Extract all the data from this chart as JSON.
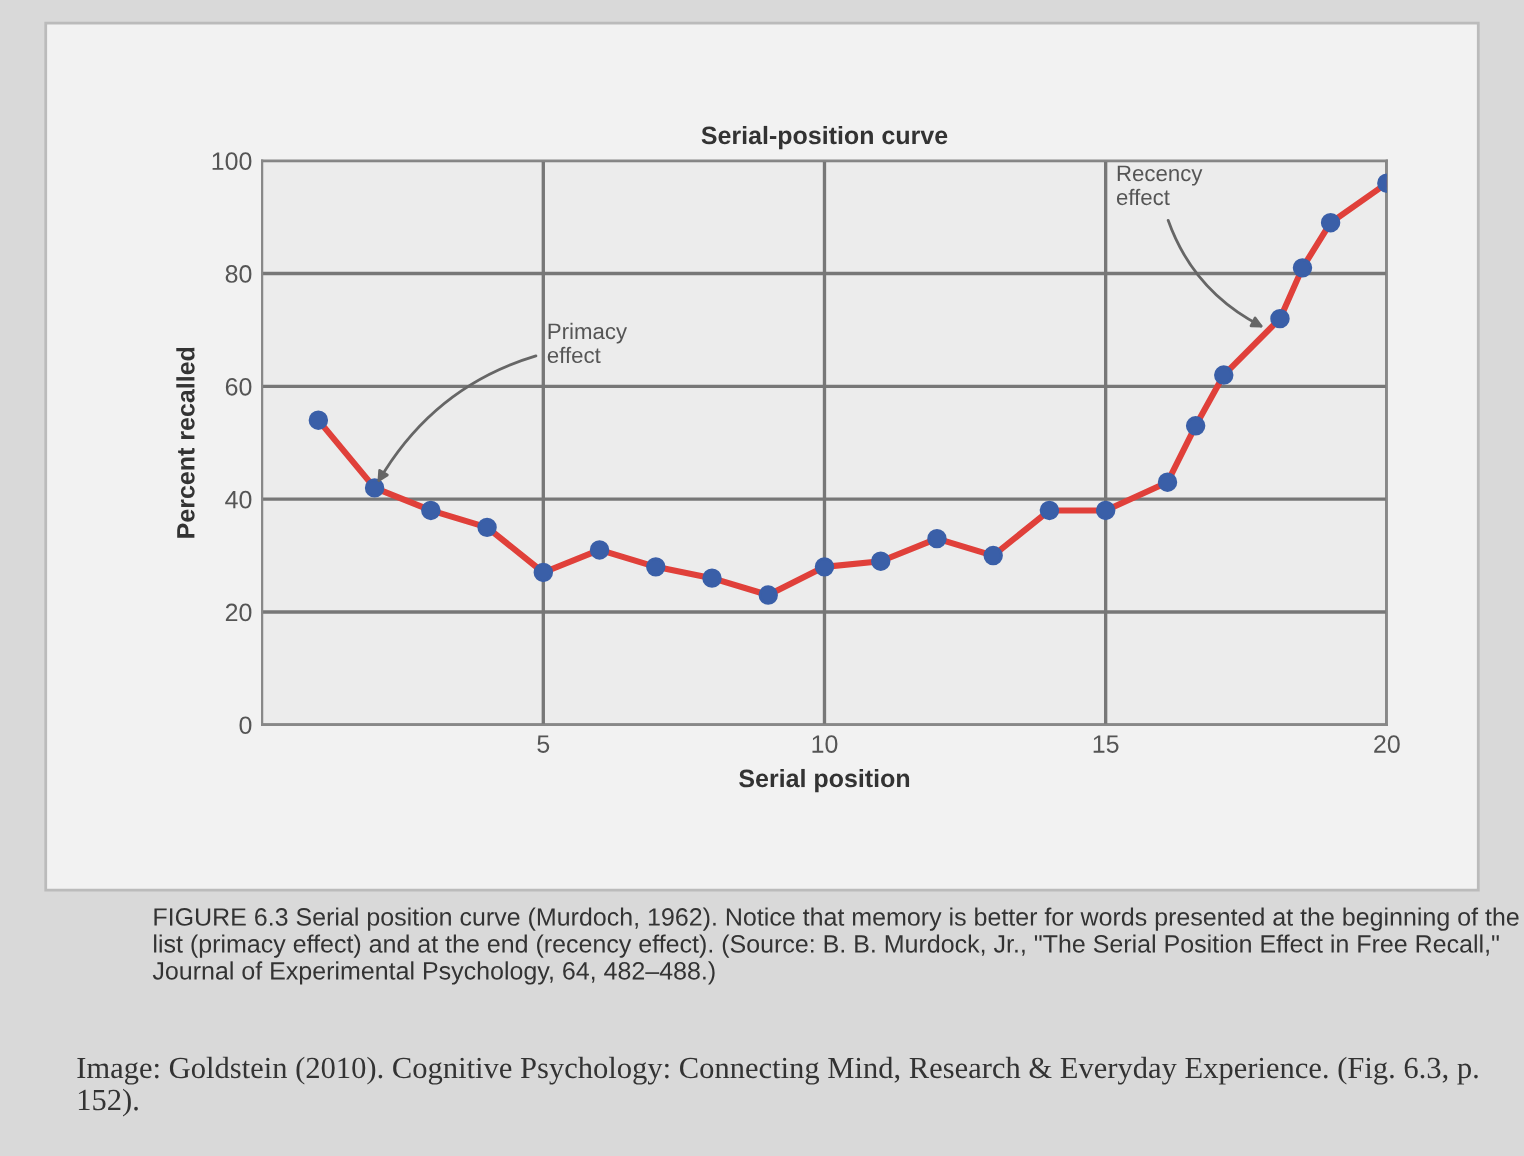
{
  "chart_data": {
    "type": "line",
    "title": "Serial-position curve",
    "xlabel": "Serial position",
    "ylabel": "Percent recalled",
    "x": [
      1,
      2,
      3,
      4,
      5,
      6,
      7,
      8,
      9,
      10,
      11,
      12,
      13,
      14,
      15,
      16.1,
      16.6,
      17.1,
      18.1,
      18.5,
      19,
      20
    ],
    "series": [
      {
        "color": "#e0403a",
        "values": [
          54,
          42,
          38,
          35,
          27,
          31,
          28,
          26,
          23,
          28,
          29,
          33,
          30,
          38,
          38,
          43,
          53,
          62,
          72,
          81,
          89,
          96
        ]
      }
    ],
    "marker": "circle",
    "line_style": "solid",
    "xlim": [
      0,
      20
    ],
    "ylim": [
      0,
      100
    ],
    "xticks": [
      5,
      10,
      15,
      20
    ],
    "yticks": [
      0,
      20,
      40,
      60,
      80,
      100
    ],
    "grid": true,
    "annotations": [
      {
        "text": "Primacy\neffect",
        "x": 2,
        "y": 42
      },
      {
        "text": "Recency\neffect",
        "x": 17.9,
        "y": 70
      },
      "FIGURE 6.3 Serial position curve (Murdoch, 1962). Notice that memory is better for words presented at the beginning of the list (primacy effect) and at the end (recency effect). (Source: B. B. Murdock, Jr., \"The Serial Position Effect in Free Recall,\" Journal of Experimental Psychology, 64, 482–488.)",
      "Image: Goldstein (2010). Cognitive Psychology: Connecting Mind, Research & Everyday Experience. (Fig. 6.3, p. 152)."
    ]
  }
}
